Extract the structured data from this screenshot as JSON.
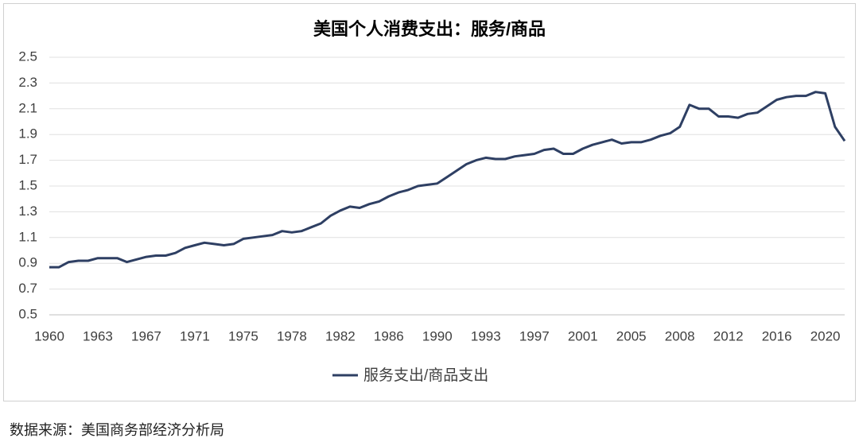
{
  "chart_data": {
    "type": "line",
    "title": "美国个人消费支出：服务/商品",
    "categories": [
      "1960",
      null,
      null,
      null,
      null,
      "1963",
      null,
      null,
      null,
      null,
      "1967",
      null,
      null,
      null,
      null,
      "1971",
      null,
      null,
      null,
      null,
      "1975",
      null,
      null,
      null,
      null,
      "1978",
      null,
      null,
      null,
      null,
      "1982",
      null,
      null,
      null,
      null,
      "1986",
      null,
      null,
      null,
      null,
      "1990",
      null,
      null,
      null,
      null,
      "1993",
      null,
      null,
      null,
      null,
      "1997",
      null,
      null,
      null,
      null,
      "2001",
      null,
      null,
      null,
      null,
      "2005",
      null,
      null,
      null,
      null,
      "2008",
      null,
      null,
      null,
      null,
      "2012",
      null,
      null,
      null,
      null,
      "2016",
      null,
      null,
      null,
      null,
      "2020",
      null,
      null
    ],
    "series": [
      {
        "name": "服务支出/商品支出",
        "color": "#2e3f63",
        "values": [
          0.87,
          0.87,
          0.91,
          0.92,
          0.92,
          0.94,
          0.94,
          0.94,
          0.91,
          0.93,
          0.95,
          0.96,
          0.96,
          0.98,
          1.02,
          1.04,
          1.06,
          1.05,
          1.04,
          1.05,
          1.09,
          1.1,
          1.11,
          1.12,
          1.15,
          1.14,
          1.15,
          1.18,
          1.21,
          1.27,
          1.31,
          1.34,
          1.33,
          1.36,
          1.38,
          1.42,
          1.45,
          1.47,
          1.5,
          1.51,
          1.52,
          1.57,
          1.62,
          1.67,
          1.7,
          1.72,
          1.71,
          1.71,
          1.73,
          1.74,
          1.75,
          1.78,
          1.79,
          1.75,
          1.75,
          1.79,
          1.82,
          1.84,
          1.86,
          1.83,
          1.84,
          1.84,
          1.86,
          1.89,
          1.91,
          1.96,
          2.13,
          2.1,
          2.1,
          2.04,
          2.04,
          2.03,
          2.06,
          2.07,
          2.12,
          2.17,
          2.19,
          2.2,
          2.2,
          2.23,
          2.22,
          1.96,
          1.85
        ]
      }
    ],
    "ylim": [
      0.5,
      2.5
    ],
    "yticks": [
      0.5,
      0.7,
      0.9,
      1.1,
      1.3,
      1.5,
      1.7,
      1.9,
      2.1,
      2.3,
      2.5
    ],
    "grid": true,
    "legend": "bottom"
  },
  "source": "数据来源：美国商务部经济分析局"
}
